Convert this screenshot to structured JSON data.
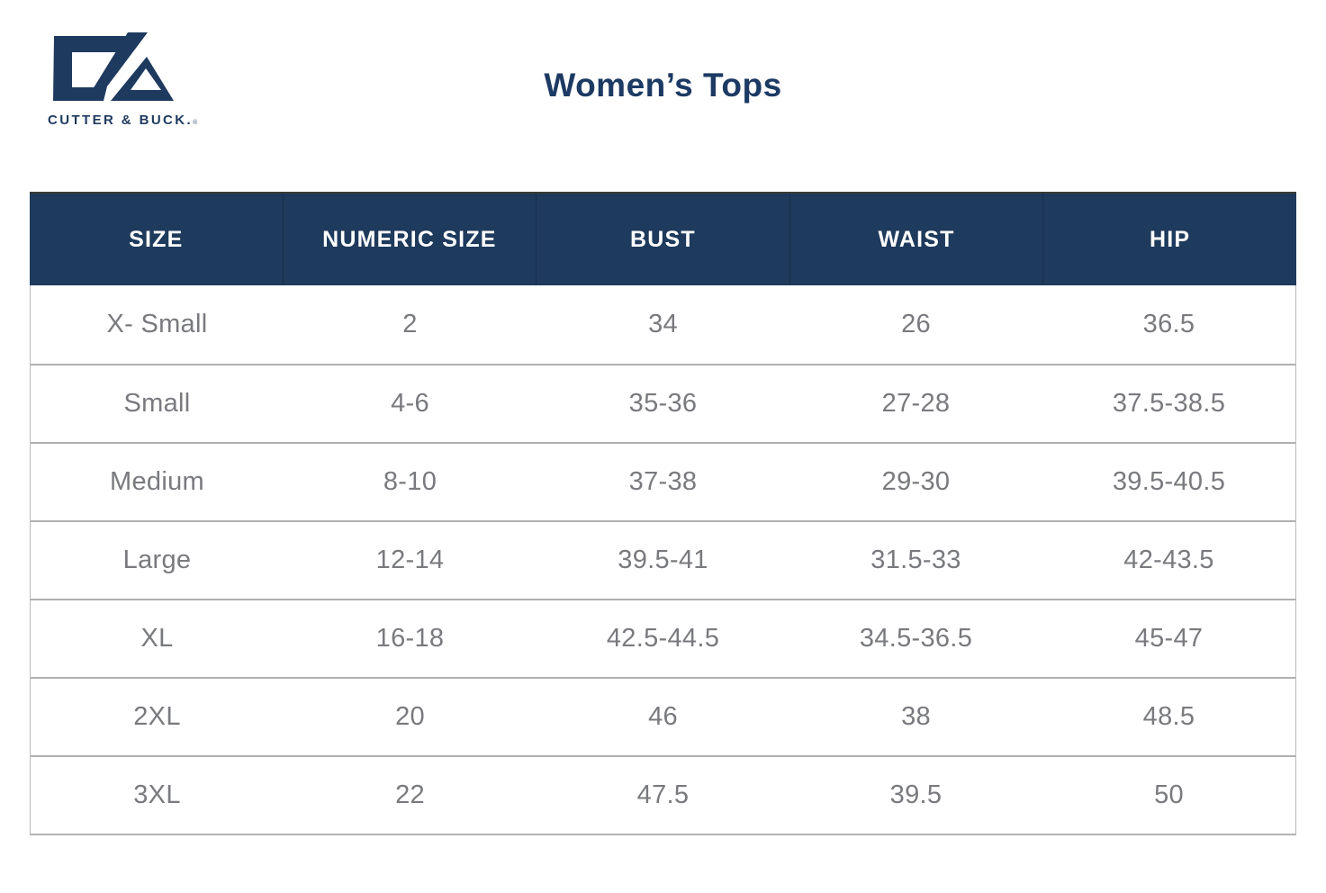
{
  "brand": {
    "logo_text": "CUTTER & BUCK.",
    "registered_mark": "®",
    "logo_color": "#1e3a5f"
  },
  "page": {
    "title": "Women’s Tops",
    "background": "#ffffff"
  },
  "colors": {
    "header_background": "#1e3a5c",
    "header_text": "#ffffff",
    "body_text": "#797a7e",
    "row_border": "#b0b0b0",
    "title_color": "#1c3a63"
  },
  "table": {
    "columns": [
      "SIZE",
      "NUMERIC SIZE",
      "BUST",
      "WAIST",
      "HIP"
    ],
    "rows": [
      [
        "X- Small",
        "2",
        "34",
        "26",
        "36.5"
      ],
      [
        "Small",
        "4-6",
        "35-36",
        "27-28",
        "37.5-38.5"
      ],
      [
        "Medium",
        "8-10",
        "37-38",
        "29-30",
        "39.5-40.5"
      ],
      [
        "Large",
        "12-14",
        "39.5-41",
        "31.5-33",
        "42-43.5"
      ],
      [
        "XL",
        "16-18",
        "42.5-44.5",
        "34.5-36.5",
        "45-47"
      ],
      [
        "2XL",
        "20",
        "46",
        "38",
        "48.5"
      ],
      [
        "3XL",
        "22",
        "47.5",
        "39.5",
        "50"
      ]
    ]
  }
}
